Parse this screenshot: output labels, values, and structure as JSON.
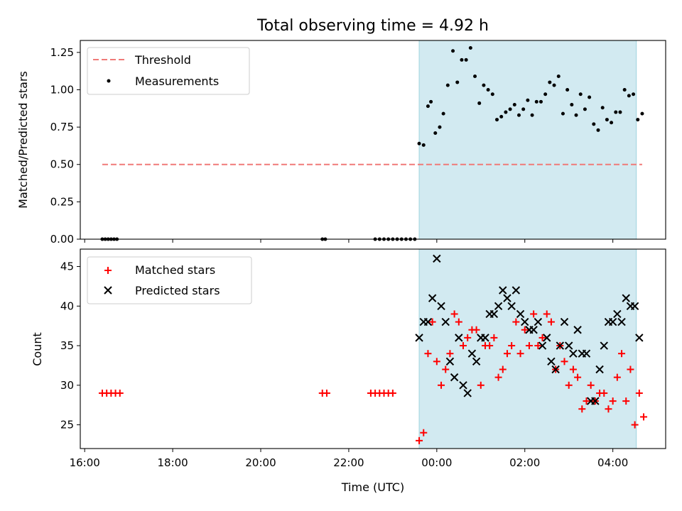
{
  "title": "Total observing time = 4.92 h",
  "colors": {
    "threshold": "#f07a78",
    "measure": "#000000",
    "matched": "#ff0000",
    "predicted": "#000000",
    "shade": "#add8e6"
  },
  "chart_data": [
    {
      "type": "scatter",
      "ylabel": "Matched/Predicted stars",
      "ylim": [
        0.0,
        1.33
      ],
      "yticks": [
        "0.00",
        "0.25",
        "0.50",
        "0.75",
        "1.00",
        "1.25"
      ],
      "xlim": [
        "15:54",
        "05:12"
      ],
      "shaded_span": [
        "23:36",
        "04:32"
      ],
      "legend": {
        "placement": "upper-left",
        "entries": [
          "Threshold",
          "Measurements"
        ]
      },
      "threshold": {
        "name": "Threshold",
        "x": [
          "16:24",
          "04:40"
        ],
        "y": 0.5
      },
      "series": [
        {
          "name": "Measurements",
          "x": [
            "16:24",
            "16:28",
            "16:32",
            "16:36",
            "16:40",
            "16:44",
            "21:24",
            "21:28",
            "22:36",
            "22:42",
            "22:48",
            "22:54",
            "23:00",
            "23:06",
            "23:12",
            "23:18",
            "23:24",
            "23:30",
            "23:36",
            "23:42",
            "23:48",
            "23:52",
            "23:58",
            "00:04",
            "00:09",
            "00:15",
            "00:22",
            "00:28",
            "00:34",
            "00:40",
            "00:46",
            "00:52",
            "00:58",
            "01:04",
            "01:10",
            "01:16",
            "01:22",
            "01:28",
            "01:34",
            "01:40",
            "01:46",
            "01:52",
            "01:58",
            "02:04",
            "02:10",
            "02:16",
            "02:22",
            "02:28",
            "02:34",
            "02:40",
            "02:46",
            "02:52",
            "02:58",
            "03:04",
            "03:10",
            "03:16",
            "03:22",
            "03:28",
            "03:34",
            "03:40",
            "03:46",
            "03:52",
            "03:58",
            "04:04",
            "04:10",
            "04:16",
            "04:22",
            "04:28",
            "04:34",
            "04:40"
          ],
          "y": [
            0,
            0,
            0,
            0,
            0,
            0,
            0,
            0,
            0,
            0,
            0,
            0,
            0,
            0,
            0,
            0,
            0,
            0,
            0.64,
            0.63,
            0.89,
            0.92,
            0.71,
            0.75,
            0.84,
            1.03,
            1.26,
            1.05,
            1.2,
            1.2,
            1.28,
            1.09,
            0.91,
            1.03,
            1.0,
            0.97,
            0.8,
            0.82,
            0.85,
            0.87,
            0.9,
            0.83,
            0.87,
            0.93,
            0.83,
            0.92,
            0.92,
            0.97,
            1.05,
            1.03,
            1.09,
            0.84,
            1.0,
            0.9,
            0.83,
            0.97,
            0.87,
            0.95,
            0.77,
            0.73,
            0.88,
            0.8,
            0.78,
            0.85,
            0.85,
            1.0,
            0.96,
            0.97,
            0.8,
            0.84
          ]
        }
      ]
    },
    {
      "type": "scatter",
      "xlabel": "Time (UTC)",
      "ylabel": "Count",
      "ylim": [
        22,
        47.2
      ],
      "yticks": [
        "25",
        "30",
        "35",
        "40",
        "45"
      ],
      "xticks": [
        "16:00",
        "18:00",
        "20:00",
        "22:00",
        "00:00",
        "02:00",
        "04:00"
      ],
      "xlim": [
        "15:54",
        "05:12"
      ],
      "shaded_span": [
        "23:36",
        "04:32"
      ],
      "legend": {
        "placement": "upper-left",
        "entries": [
          "Matched stars",
          "Predicted stars"
        ]
      },
      "series": [
        {
          "name": "Matched stars",
          "marker": "plus",
          "x": [
            "16:24",
            "16:30",
            "16:36",
            "16:42",
            "16:48",
            "21:24",
            "21:30",
            "22:30",
            "22:36",
            "22:42",
            "22:48",
            "22:54",
            "23:00",
            "23:36",
            "23:42",
            "23:48",
            "23:54",
            "00:00",
            "00:06",
            "00:12",
            "00:18",
            "00:24",
            "00:30",
            "00:36",
            "00:42",
            "00:48",
            "00:54",
            "01:00",
            "01:06",
            "01:12",
            "01:18",
            "01:24",
            "01:30",
            "01:36",
            "01:42",
            "01:48",
            "01:54",
            "02:00",
            "02:06",
            "02:12",
            "02:18",
            "02:24",
            "02:30",
            "02:36",
            "02:42",
            "02:48",
            "02:54",
            "03:00",
            "03:06",
            "03:12",
            "03:18",
            "03:24",
            "03:30",
            "03:36",
            "03:42",
            "03:48",
            "03:54",
            "04:00",
            "04:06",
            "04:12",
            "04:18",
            "04:24",
            "04:30",
            "04:36",
            "04:42"
          ],
          "y": [
            29,
            29,
            29,
            29,
            29,
            29,
            29,
            29,
            29,
            29,
            29,
            29,
            29,
            23,
            24,
            34,
            38,
            33,
            30,
            32,
            34,
            39,
            38,
            35,
            36,
            37,
            37,
            30,
            35,
            35,
            36,
            31,
            32,
            34,
            35,
            38,
            34,
            37,
            35,
            39,
            35,
            36,
            39,
            38,
            32,
            35,
            33,
            30,
            32,
            31,
            27,
            28,
            30,
            28,
            29,
            29,
            27,
            28,
            31,
            34,
            28,
            32,
            25,
            29,
            26
          ]
        },
        {
          "name": "Predicted stars",
          "marker": "x",
          "x": [
            "23:36",
            "23:42",
            "23:48",
            "23:54",
            "24:00",
            "24:06",
            "24:12",
            "24:18",
            "24:24",
            "24:30",
            "24:36",
            "24:42",
            "24:48",
            "24:54",
            "25:00",
            "25:06",
            "25:12",
            "25:18",
            "25:24",
            "25:30",
            "25:36",
            "25:42",
            "25:48",
            "25:54",
            "26:00",
            "26:06",
            "26:12",
            "26:18",
            "26:24",
            "26:30",
            "26:36",
            "26:42",
            "26:48",
            "26:54",
            "27:00",
            "27:06",
            "27:12",
            "27:18",
            "27:24",
            "27:30",
            "27:36",
            "27:42",
            "27:48",
            "27:54",
            "28:00",
            "28:06",
            "28:12",
            "28:18",
            "28:24",
            "28:30",
            "28:36"
          ],
          "y": [
            36,
            38,
            38,
            41,
            46,
            40,
            38,
            33,
            31,
            36,
            30,
            29,
            34,
            33,
            36,
            36,
            39,
            39,
            40,
            42,
            41,
            40,
            42,
            39,
            38,
            37,
            37,
            38,
            35,
            36,
            33,
            32,
            35,
            38,
            35,
            34,
            37,
            34,
            34,
            28,
            28,
            32,
            35,
            38,
            38,
            39,
            38,
            41,
            40,
            40,
            36
          ]
        }
      ]
    }
  ]
}
